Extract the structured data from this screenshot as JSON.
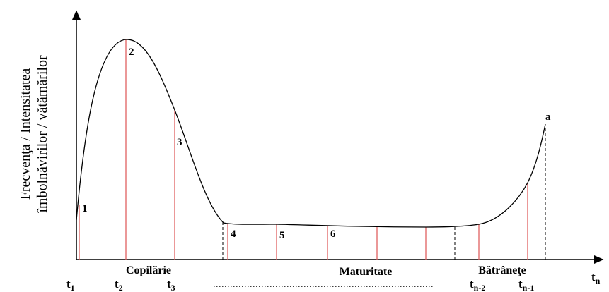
{
  "axis_label": [
    "Frecvenţa / Intensitatea",
    "îmbolnăvirilor / vătămărilor"
  ],
  "points": [
    "1",
    "2",
    "3",
    "4",
    "5",
    "6",
    "a"
  ],
  "phases": [
    "Copilărie",
    "Maturitate",
    "Bătrâneţe"
  ],
  "times": [
    {
      "base": "t",
      "sub": "1"
    },
    {
      "base": "t",
      "sub": "2"
    },
    {
      "base": "t",
      "sub": "3"
    },
    {
      "base": "t",
      "sub": "n-2"
    },
    {
      "base": "t",
      "sub": "n-1"
    },
    {
      "base": "t",
      "sub": "n"
    }
  ]
}
